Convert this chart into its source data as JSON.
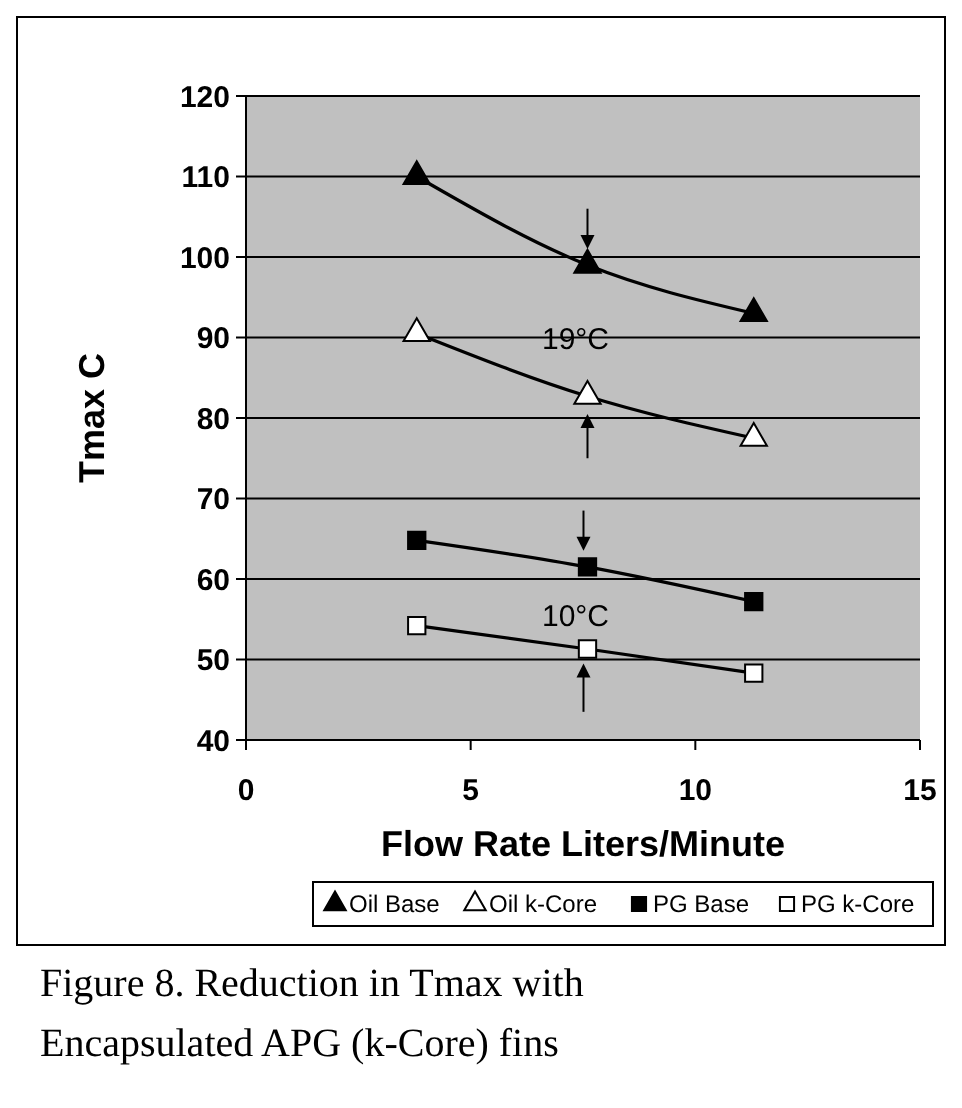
{
  "chart_data": {
    "type": "scatter",
    "xlabel": "Flow Rate Liters/Minute",
    "ylabel": "Tmax C",
    "xlim": [
      0,
      15
    ],
    "xticks": [
      0,
      5,
      10,
      15
    ],
    "ylim": [
      40,
      120
    ],
    "yticks": [
      40,
      50,
      60,
      70,
      80,
      90,
      100,
      110,
      120
    ],
    "grid": "y",
    "legend": "bottom",
    "series": [
      {
        "type": "line",
        "color": "#000000",
        "marker": "none",
        "x": [
          3.8,
          7.6,
          11.3
        ],
        "values": [
          110,
          99,
          93
        ]
      },
      {
        "type": "line",
        "color": "#000000",
        "marker": "none",
        "x": [
          3.8,
          7.6,
          11.3
        ],
        "values": [
          90.5,
          82.7,
          77.5
        ]
      },
      {
        "type": "line",
        "color": "#000000",
        "marker": "none",
        "x": [
          3.8,
          7.6,
          11.3
        ],
        "values": [
          64.8,
          61.5,
          57.2
        ]
      },
      {
        "type": "line",
        "color": "#000000",
        "marker": "none",
        "x": [
          3.8,
          7.6,
          11.3
        ],
        "values": [
          54.2,
          51.3,
          48.3
        ]
      },
      {
        "name": "Oil Base",
        "color": "#000000",
        "marker": "triangle",
        "x": [
          3.8,
          7.6,
          11.3
        ],
        "values": [
          110,
          99,
          93
        ]
      },
      {
        "name": "Oil k-Core",
        "color": "#ffffff",
        "marker": "triangle",
        "x": [
          3.8,
          7.6,
          11.3
        ],
        "values": [
          90.5,
          82.7,
          77.5
        ]
      },
      {
        "name": "PG Base",
        "color": "#000000",
        "marker": "square",
        "x": [
          3.8,
          7.6,
          11.3
        ],
        "values": [
          64.8,
          61.5,
          57.2
        ]
      },
      {
        "name": "PG k-Core",
        "color": "#ffffff",
        "marker": "square",
        "x": [
          3.8,
          7.6,
          11.3
        ],
        "values": [
          54.2,
          51.3,
          48.3
        ]
      }
    ],
    "annotations": [
      "19°C",
      "10°C",
      "Figure 8. Reduction in Tmax with Encapsulated APG (k-Core) fins"
    ]
  }
}
